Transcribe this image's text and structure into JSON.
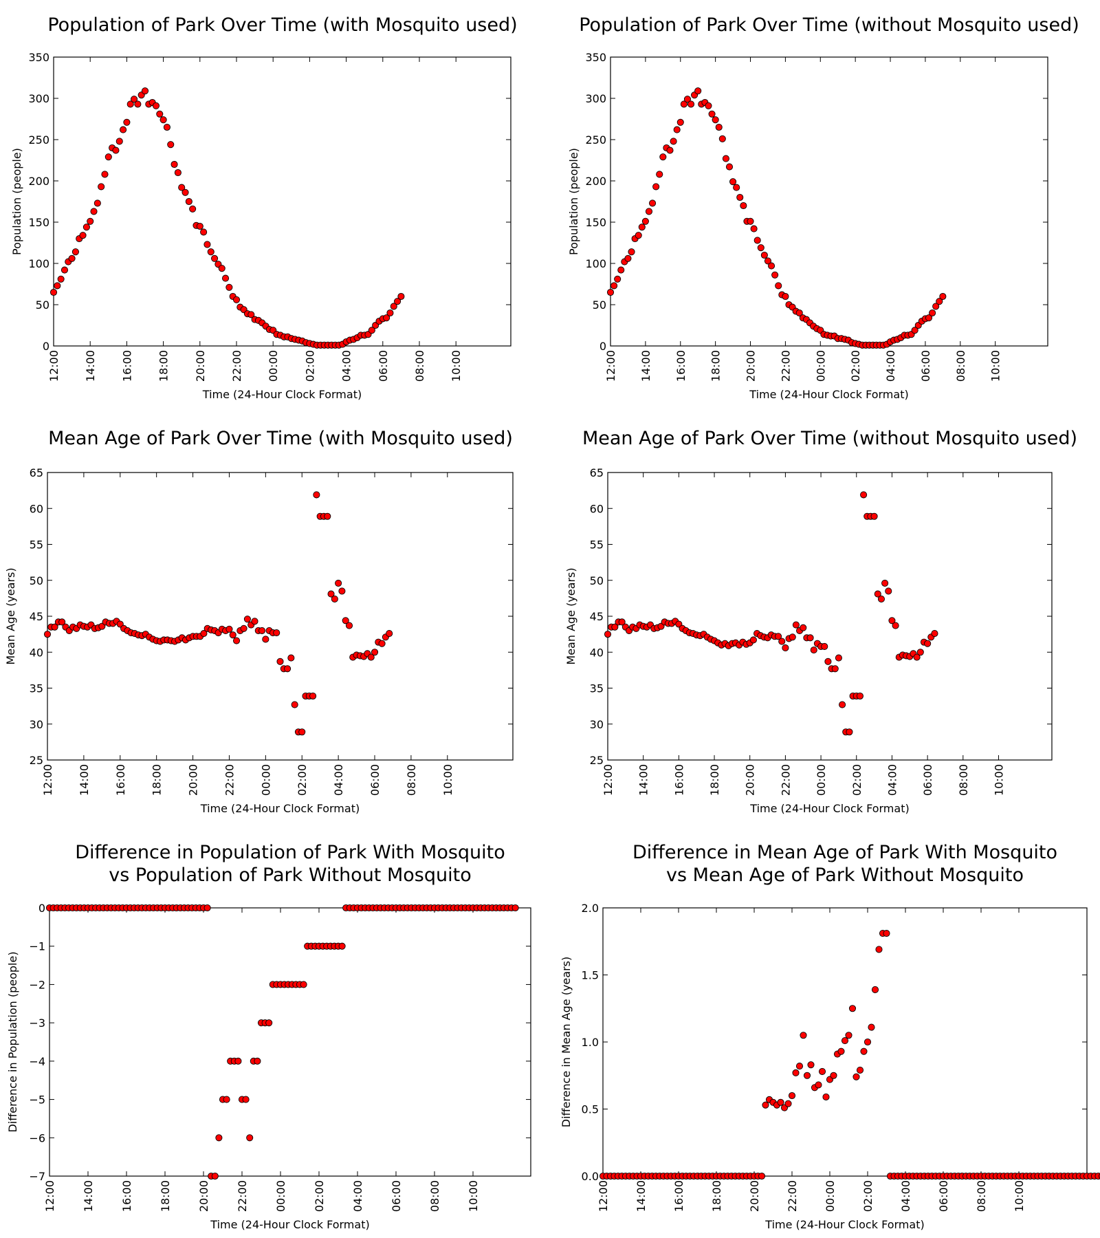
{
  "chart_data": [
    {
      "id": "pop-with",
      "type": "scatter",
      "title": "Population of Park Over Time (with Mosquito used)",
      "title_lines": [
        "Population of Park Over Time (with Mosquito used)"
      ],
      "xlabel": "Time (24-Hour Clock Format)",
      "ylabel": "Population (people)",
      "x_tick_labels": [
        "12:00",
        "14:00",
        "16:00",
        "18:00",
        "20:00",
        "22:00",
        "00:00",
        "02:00",
        "04:00",
        "06:00",
        "08:00",
        "10:00"
      ],
      "x_tick_step_samples": 10,
      "xlim_samples": [
        0,
        125
      ],
      "y_ticks": [
        0,
        50,
        100,
        150,
        200,
        250,
        300,
        350
      ],
      "y_tick_labels": [
        "0",
        "50",
        "100",
        "150",
        "200",
        "250",
        "300",
        "350"
      ],
      "ylim": [
        0,
        350
      ],
      "x_note": "one sample every 12 minutes starting 12:00",
      "values": [
        65,
        73,
        81,
        92,
        102,
        106,
        114,
        130,
        134,
        144,
        151,
        163,
        173,
        193,
        208,
        229,
        240,
        237,
        248,
        262,
        271,
        293,
        299,
        293,
        304,
        309,
        293,
        295,
        291,
        281,
        274,
        265,
        244,
        220,
        210,
        192,
        186,
        175,
        166,
        146,
        145,
        138,
        123,
        114,
        106,
        99,
        94,
        82,
        71,
        60,
        56,
        47,
        44,
        39,
        38,
        32,
        31,
        28,
        24,
        20,
        19,
        14,
        13,
        11,
        11,
        9,
        8,
        7,
        6,
        4,
        3,
        2,
        1,
        1,
        1,
        1,
        1,
        1,
        1,
        2,
        5,
        7,
        8,
        10,
        13,
        13,
        14,
        19,
        25,
        30,
        33,
        34,
        40,
        48,
        54,
        60
      ]
    },
    {
      "id": "pop-without",
      "type": "scatter",
      "title": "Population of Park Over Time (without Mosquito used)",
      "title_lines": [
        "Population of Park Over Time (without Mosquito used)"
      ],
      "xlabel": "Time (24-Hour Clock Format)",
      "ylabel": "Population (people)",
      "x_tick_labels": [
        "12:00",
        "14:00",
        "16:00",
        "18:00",
        "20:00",
        "22:00",
        "00:00",
        "02:00",
        "04:00",
        "06:00",
        "08:00",
        "10:00"
      ],
      "x_tick_step_samples": 10,
      "xlim_samples": [
        0,
        125
      ],
      "y_ticks": [
        0,
        50,
        100,
        150,
        200,
        250,
        300,
        350
      ],
      "y_tick_labels": [
        "0",
        "50",
        "100",
        "150",
        "200",
        "250",
        "300",
        "350"
      ],
      "ylim": [
        0,
        350
      ],
      "values": [
        65,
        73,
        81,
        92,
        102,
        106,
        114,
        130,
        134,
        144,
        151,
        163,
        173,
        193,
        208,
        229,
        240,
        237,
        248,
        262,
        271,
        293,
        299,
        293,
        304,
        309,
        293,
        295,
        291,
        281,
        274,
        265,
        251,
        227,
        217,
        199,
        192,
        180,
        170,
        151,
        151,
        142,
        128,
        119,
        110,
        103,
        97,
        86,
        73,
        62,
        60,
        50,
        47,
        42,
        40,
        34,
        32,
        28,
        24,
        21,
        19,
        14,
        13,
        12,
        12,
        9,
        9,
        8,
        7,
        4,
        3,
        2,
        1,
        1,
        1,
        1,
        1,
        1,
        1,
        2,
        5,
        7,
        8,
        10,
        13,
        13,
        14,
        19,
        25,
        30,
        33,
        34,
        40,
        48,
        54,
        60
      ]
    },
    {
      "id": "age-with",
      "type": "scatter",
      "title": "Mean Age of Park Over Time (with Mosquito used)",
      "title_lines": [
        "Mean Age of Park Over Time (with Mosquito used)"
      ],
      "xlabel": "Time (24-Hour Clock Format)",
      "ylabel": "Mean Age (years)",
      "x_tick_labels": [
        "12:00",
        "14:00",
        "16:00",
        "18:00",
        "20:00",
        "22:00",
        "00:00",
        "02:00",
        "04:00",
        "06:00",
        "08:00",
        "10:00"
      ],
      "x_tick_step_samples": 10,
      "xlim_samples": [
        0,
        128
      ],
      "y_ticks": [
        25,
        30,
        35,
        40,
        45,
        50,
        55,
        60,
        65
      ],
      "y_tick_labels": [
        "25",
        "30",
        "35",
        "40",
        "45",
        "50",
        "55",
        "60",
        "65"
      ],
      "ylim": [
        25,
        65
      ],
      "values": [
        42.5,
        43.5,
        43.5,
        44.2,
        44.2,
        43.5,
        43.0,
        43.5,
        43.3,
        43.8,
        43.6,
        43.5,
        43.8,
        43.3,
        43.4,
        43.6,
        44.2,
        44.0,
        44.0,
        44.3,
        43.9,
        43.3,
        43.0,
        42.7,
        42.6,
        42.4,
        42.3,
        42.5,
        42.1,
        41.8,
        41.6,
        41.5,
        41.7,
        41.7,
        41.6,
        41.5,
        41.7,
        42.0,
        41.7,
        42.0,
        42.2,
        42.2,
        42.2,
        42.6,
        43.3,
        43.1,
        43.0,
        42.7,
        43.2,
        43.0,
        43.2,
        42.4,
        41.6,
        43.0,
        43.3,
        44.6,
        43.8,
        44.3,
        43.0,
        43.0,
        41.8,
        43.0,
        42.7,
        42.7,
        38.7,
        37.7,
        37.7,
        39.2,
        32.7,
        28.9,
        28.9,
        33.9,
        33.9,
        33.9,
        61.9,
        58.9,
        58.9,
        58.9,
        48.1,
        47.4,
        49.6,
        48.5,
        44.4,
        43.7,
        39.3,
        39.6,
        39.5,
        39.4,
        39.8,
        39.3,
        40.0,
        41.4,
        41.2,
        42.1,
        42.6
      ]
    },
    {
      "id": "age-without",
      "type": "scatter",
      "title": "Mean Age of Park Over Time (without Mosquito used)",
      "title_lines": [
        "Mean Age of Park Over Time (without Mosquito used)"
      ],
      "xlabel": "Time (24-Hour Clock Format)",
      "ylabel": "Mean Age (years)",
      "x_tick_labels": [
        "12:00",
        "14:00",
        "16:00",
        "18:00",
        "20:00",
        "22:00",
        "00:00",
        "02:00",
        "04:00",
        "06:00",
        "08:00",
        "10:00"
      ],
      "x_tick_step_samples": 10,
      "xlim_samples": [
        0,
        125
      ],
      "y_ticks": [
        25,
        30,
        35,
        40,
        45,
        50,
        55,
        60,
        65
      ],
      "y_tick_labels": [
        "25",
        "30",
        "35",
        "40",
        "45",
        "50",
        "55",
        "60",
        "65"
      ],
      "ylim": [
        25,
        65
      ],
      "values": [
        42.5,
        43.5,
        43.5,
        44.2,
        44.2,
        43.5,
        43.0,
        43.5,
        43.3,
        43.8,
        43.6,
        43.5,
        43.8,
        43.3,
        43.4,
        43.6,
        44.2,
        44.0,
        44.0,
        44.3,
        43.9,
        43.3,
        43.0,
        42.7,
        42.6,
        42.4,
        42.3,
        42.5,
        42.1,
        41.8,
        41.6,
        41.3,
        41.0,
        41.2,
        40.9,
        41.2,
        41.3,
        41.0,
        41.4,
        41.1,
        41.3,
        41.7,
        42.6,
        42.3,
        42.1,
        42.0,
        42.4,
        42.2,
        42.2,
        41.5,
        40.6,
        41.9,
        42.1,
        43.8,
        43.0,
        43.4,
        42.0,
        42.0,
        40.3,
        41.2,
        40.8,
        40.8,
        38.7,
        37.7,
        37.7,
        39.2,
        32.7,
        28.9,
        28.9,
        33.9,
        33.9,
        33.9,
        61.9,
        58.9,
        58.9,
        58.9,
        48.1,
        47.4,
        49.6,
        48.5,
        44.4,
        43.7,
        39.3,
        39.6,
        39.5,
        39.4,
        39.8,
        39.3,
        40.0,
        41.4,
        41.2,
        42.1,
        42.6
      ]
    },
    {
      "id": "pop-diff",
      "type": "scatter",
      "title": "Difference in Population of Park With Mosquito vs Population of Park Without Mosquito",
      "title_lines": [
        "Difference in Population of Park With Mosquito",
        "vs Population of Park Without Mosquito"
      ],
      "xlabel": "Time (24-Hour Clock Format)",
      "ylabel": "Difference in Population (people)",
      "x_tick_labels": [
        "12:00",
        "14:00",
        "16:00",
        "18:00",
        "20:00",
        "22:00",
        "00:00",
        "02:00",
        "04:00",
        "06:00",
        "08:00",
        "10:00"
      ],
      "x_tick_step_samples": 10,
      "xlim_samples": [
        0,
        125
      ],
      "y_ticks": [
        -7,
        -6,
        -5,
        -4,
        -3,
        -2,
        -1,
        0
      ],
      "y_tick_labels": [
        "−7",
        "−6",
        "−5",
        "−4",
        "−3",
        "−2",
        "−1",
        "0"
      ],
      "ylim": [
        -7,
        0
      ],
      "values": [
        0,
        0,
        0,
        0,
        0,
        0,
        0,
        0,
        0,
        0,
        0,
        0,
        0,
        0,
        0,
        0,
        0,
        0,
        0,
        0,
        0,
        0,
        0,
        0,
        0,
        0,
        0,
        0,
        0,
        0,
        0,
        0,
        0,
        0,
        0,
        0,
        0,
        0,
        0,
        0,
        0,
        0,
        -7,
        -7,
        -6,
        -5,
        -5,
        -4,
        -4,
        -4,
        -5,
        -5,
        -6,
        -4,
        -4,
        -3,
        -3,
        -3,
        -2,
        -2,
        -2,
        -2,
        -2,
        -2,
        -2,
        -2,
        -2,
        -1,
        -1,
        -1,
        -1,
        -1,
        -1,
        -1,
        -1,
        -1,
        -1,
        0,
        0,
        0,
        0,
        0,
        0,
        0,
        0,
        0,
        0,
        0,
        0,
        0,
        0,
        0,
        0,
        0,
        0,
        0,
        0,
        0,
        0,
        0,
        0,
        0,
        0,
        0,
        0,
        0,
        0,
        0,
        0,
        0,
        0,
        0,
        0,
        0,
        0,
        0,
        0,
        0,
        0,
        0,
        0,
        0
      ]
    },
    {
      "id": "age-diff",
      "type": "scatter",
      "title": "Difference in Mean Age of Park With Mosquito vs Mean Age of Park Without Mosquito",
      "title_lines": [
        "Difference in Mean Age of Park With Mosquito",
        "vs Mean Age of Park Without Mosquito"
      ],
      "xlabel": "Time (24-Hour Clock Format)",
      "ylabel": "Difference in Mean Age (years)",
      "x_tick_labels": [
        "12:00",
        "14:00",
        "16:00",
        "18:00",
        "20:00",
        "22:00",
        "00:00",
        "02:00",
        "04:00",
        "06:00",
        "08:00",
        "10:00"
      ],
      "x_tick_step_samples": 10,
      "xlim_samples": [
        0,
        128
      ],
      "y_ticks": [
        0.0,
        0.5,
        1.0,
        1.5,
        2.0
      ],
      "y_tick_labels": [
        "0.0",
        "0.5",
        "1.0",
        "1.5",
        "2.0"
      ],
      "ylim": [
        0,
        2
      ],
      "values": [
        0,
        0,
        0,
        0,
        0,
        0,
        0,
        0,
        0,
        0,
        0,
        0,
        0,
        0,
        0,
        0,
        0,
        0,
        0,
        0,
        0,
        0,
        0,
        0,
        0,
        0,
        0,
        0,
        0,
        0,
        0,
        0,
        0,
        0,
        0,
        0,
        0,
        0,
        0,
        0,
        0,
        0,
        0,
        0.53,
        0.57,
        0.55,
        0.53,
        0.55,
        0.51,
        0.54,
        0.6,
        0.77,
        0.82,
        1.05,
        0.75,
        0.83,
        0.66,
        0.68,
        0.78,
        0.59,
        0.72,
        0.75,
        0.91,
        0.93,
        1.01,
        1.05,
        1.25,
        0.74,
        0.79,
        0.93,
        1.0,
        1.11,
        1.39,
        1.69,
        1.81,
        1.81,
        0,
        0,
        0,
        0,
        0,
        0,
        0,
        0,
        0,
        0,
        0,
        0,
        0,
        0,
        0,
        0,
        0,
        0,
        0,
        0,
        0,
        0,
        0,
        0,
        0,
        0,
        0,
        0,
        0,
        0,
        0,
        0,
        0,
        0,
        0,
        0,
        0,
        0,
        0,
        0,
        0,
        0,
        0,
        0,
        0,
        0,
        0,
        0,
        0,
        0,
        0,
        0,
        0,
        0,
        0,
        0,
        0,
        0,
        0,
        0,
        0,
        0,
        0,
        0,
        0,
        0,
        0,
        0,
        0
      ]
    }
  ]
}
